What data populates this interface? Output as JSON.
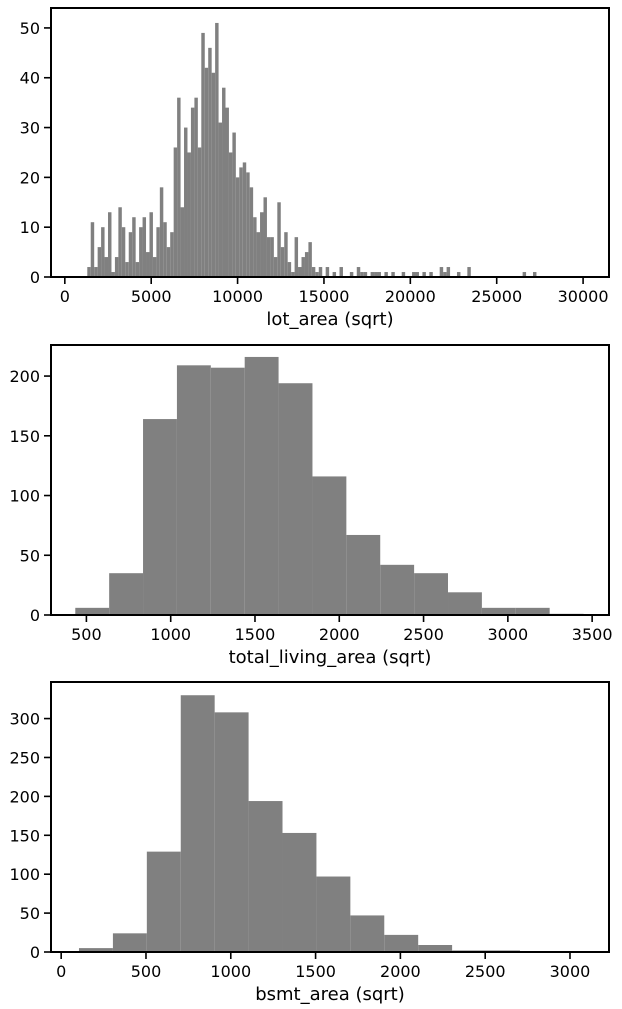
{
  "chart_data": [
    {
      "type": "histogram",
      "xlabel": "lot_area (sqrt)",
      "ylabel": "",
      "title": "",
      "bar_color": "#808080",
      "xlim": [
        -800,
        31500
      ],
      "ylim": [
        0,
        54
      ],
      "xticks": [
        0,
        5000,
        10000,
        15000,
        20000,
        25000,
        30000
      ],
      "yticks": [
        0,
        10,
        20,
        30,
        40,
        50
      ],
      "bin_start": 1300,
      "bin_width": 200,
      "values": [
        2,
        11,
        2,
        6,
        10,
        4,
        13,
        1,
        4,
        14,
        10,
        3,
        9,
        12,
        3,
        10,
        12,
        5,
        13,
        4,
        10,
        18,
        11,
        6,
        9,
        26,
        36,
        14,
        30,
        25,
        34,
        36,
        26,
        49,
        42,
        46,
        41,
        51,
        31,
        38,
        34,
        25,
        29,
        20,
        22,
        23,
        21,
        18,
        12,
        9,
        13,
        16,
        8,
        8,
        4,
        15,
        6,
        9,
        3,
        1,
        8,
        2,
        4,
        5,
        7,
        2,
        1,
        2,
        0,
        2,
        0,
        1,
        0,
        2,
        0,
        0,
        1,
        0,
        2,
        1,
        1,
        0,
        1,
        1,
        1,
        0,
        1,
        0,
        1,
        0,
        0,
        1,
        0,
        0,
        1,
        1,
        0,
        1,
        0,
        1,
        0,
        0,
        2,
        1,
        2,
        0,
        0,
        1,
        0,
        0,
        2,
        0,
        0,
        0,
        0,
        0,
        0,
        0,
        0,
        0,
        0,
        0,
        0,
        0,
        0,
        0,
        1,
        0,
        0,
        1,
        0,
        0,
        0,
        0,
        0,
        0,
        0,
        0,
        0,
        0,
        0,
        0,
        0,
        0,
        0
      ]
    },
    {
      "type": "histogram",
      "xlabel": "total_living_area (sqrt)",
      "ylabel": "",
      "title": "",
      "bar_color": "#808080",
      "xlim": [
        290,
        3600
      ],
      "ylim": [
        0,
        226
      ],
      "xticks": [
        500,
        1000,
        1500,
        2000,
        2500,
        3000,
        3500
      ],
      "yticks": [
        0,
        50,
        100,
        150,
        200
      ],
      "bin_edges": [
        434,
        635,
        836,
        1037,
        1238,
        1439,
        1640,
        1841,
        2042,
        2243,
        2444,
        2645,
        2846,
        3047,
        3248,
        3449
      ],
      "values": [
        6,
        35,
        164,
        209,
        207,
        216,
        194,
        116,
        67,
        42,
        35,
        19,
        6,
        6,
        1
      ]
    },
    {
      "type": "histogram",
      "xlabel": "bsmt_area (sqrt)",
      "ylabel": "",
      "title": "",
      "bar_color": "#808080",
      "xlim": [
        -60,
        3230
      ],
      "ylim": [
        0,
        347
      ],
      "xticks": [
        0,
        500,
        1000,
        1500,
        2000,
        2500,
        3000
      ],
      "yticks": [
        0,
        50,
        100,
        150,
        200,
        250,
        300
      ],
      "bin_edges": [
        105,
        305,
        505,
        705,
        905,
        1105,
        1305,
        1505,
        1705,
        1905,
        2105,
        2305,
        2505,
        2705,
        2905,
        3105
      ],
      "values": [
        5,
        24,
        129,
        330,
        308,
        194,
        153,
        97,
        47,
        22,
        9,
        2,
        2,
        0,
        1
      ]
    }
  ]
}
